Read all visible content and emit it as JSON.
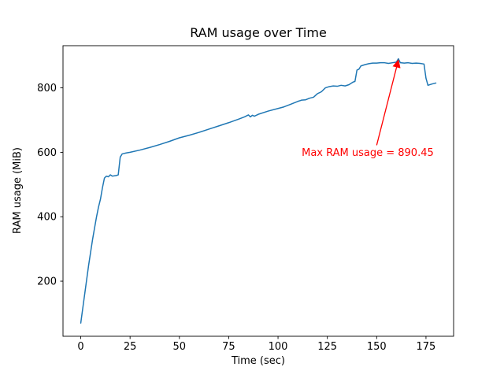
{
  "chart_data": {
    "type": "line",
    "title": "RAM usage over Time",
    "xlabel": "Time (sec)",
    "ylabel": "RAM usage (MiB)",
    "line_color": "#1f77b4",
    "xlim": [
      -9,
      189
    ],
    "ylim": [
      29,
      931
    ],
    "xticks": [
      0,
      25,
      50,
      75,
      100,
      125,
      150,
      175
    ],
    "xtick_labels": [
      "0",
      "25",
      "50",
      "75",
      "100",
      "125",
      "150",
      "175"
    ],
    "yticks": [
      200,
      400,
      600,
      800
    ],
    "ytick_labels": [
      "200",
      "400",
      "600",
      "800"
    ],
    "x": [
      0,
      1,
      2,
      3,
      4,
      5,
      6,
      7,
      8,
      9,
      10,
      11,
      12,
      13,
      14,
      15,
      16,
      17,
      18,
      19,
      20,
      21,
      23,
      25,
      30,
      35,
      40,
      45,
      50,
      55,
      60,
      65,
      70,
      75,
      80,
      83,
      85,
      86,
      87,
      88,
      90,
      95,
      100,
      103,
      106,
      108,
      110,
      112,
      114,
      116,
      118,
      120,
      122,
      124,
      126,
      128,
      130,
      132,
      134,
      136,
      138,
      139,
      140,
      141,
      142,
      144,
      146,
      148,
      150,
      152,
      154,
      156,
      158,
      160,
      161,
      162,
      164,
      166,
      168,
      170,
      172,
      174,
      175,
      176,
      178,
      180
    ],
    "y": [
      70,
      115,
      160,
      205,
      250,
      290,
      330,
      365,
      400,
      430,
      455,
      490,
      520,
      526,
      524,
      530,
      526,
      527,
      528,
      530,
      585,
      595,
      598,
      600,
      607,
      615,
      624,
      634,
      645,
      653,
      662,
      672,
      682,
      692,
      703,
      710,
      716,
      710,
      715,
      712,
      718,
      728,
      736,
      741,
      748,
      753,
      758,
      762,
      763,
      768,
      771,
      782,
      788,
      800,
      804,
      806,
      805,
      808,
      806,
      810,
      818,
      820,
      855,
      858,
      868,
      872,
      875,
      877,
      877,
      878,
      878,
      876,
      878,
      880,
      890.45,
      878,
      877,
      878,
      876,
      877,
      876,
      874,
      830,
      808,
      812,
      815
    ],
    "annotation": {
      "text": "Max RAM usage = 890.45",
      "max_value": 890.45,
      "color": "#ff0000",
      "text_xy": [
        112,
        600
      ],
      "arrow_from": [
        150,
        622
      ],
      "arrow_to": [
        161,
        886
      ]
    },
    "legend": null,
    "grid": false
  }
}
